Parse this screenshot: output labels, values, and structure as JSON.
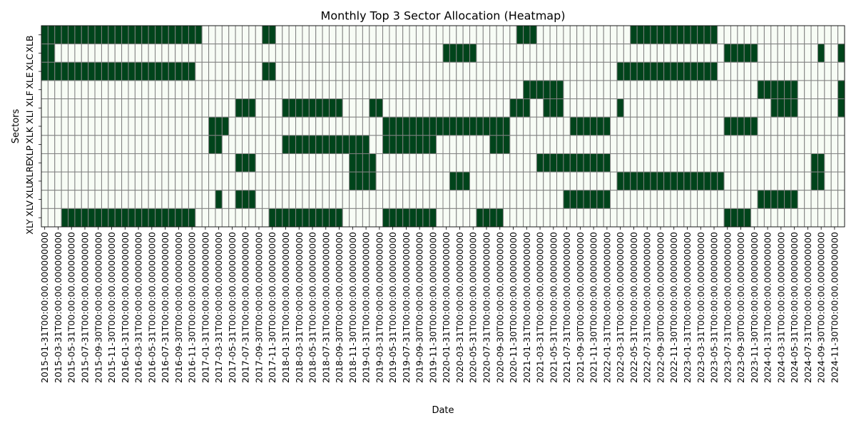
{
  "chart_data": {
    "type": "heatmap",
    "title": "Monthly Top 3 Sector Allocation (Heatmap)",
    "xlabel": "Date",
    "ylabel": "Sectors",
    "colors": {
      "on": "#00441b",
      "off": "#f7fcf5",
      "grid": "#808080"
    },
    "sectors": [
      "XLB",
      "XLC",
      "XLE",
      "XLF",
      "XLI",
      "XLK",
      "XLP",
      "XLRE",
      "XLU",
      "XLV",
      "XLY"
    ],
    "x_tick_labels": [
      "2015-01-31T00:00:00.000000000",
      "2015-03-31T00:00:00.000000000",
      "2015-05-31T00:00:00.000000000",
      "2015-07-31T00:00:00.000000000",
      "2015-09-30T00:00:00.000000000",
      "2015-11-30T00:00:00.000000000",
      "2016-01-31T00:00:00.000000000",
      "2016-03-31T00:00:00.000000000",
      "2016-05-31T00:00:00.000000000",
      "2016-07-31T00:00:00.000000000",
      "2016-09-30T00:00:00.000000000",
      "2016-11-30T00:00:00.000000000",
      "2017-01-31T00:00:00.000000000",
      "2017-03-31T00:00:00.000000000",
      "2017-05-31T00:00:00.000000000",
      "2017-07-31T00:00:00.000000000",
      "2017-09-30T00:00:00.000000000",
      "2017-11-30T00:00:00.000000000",
      "2018-01-31T00:00:00.000000000",
      "2018-03-31T00:00:00.000000000",
      "2018-05-31T00:00:00.000000000",
      "2018-07-31T00:00:00.000000000",
      "2018-09-30T00:00:00.000000000",
      "2018-11-30T00:00:00.000000000",
      "2019-01-31T00:00:00.000000000",
      "2019-03-31T00:00:00.000000000",
      "2019-05-31T00:00:00.000000000",
      "2019-07-31T00:00:00.000000000",
      "2019-09-30T00:00:00.000000000",
      "2019-11-30T00:00:00.000000000",
      "2020-01-31T00:00:00.000000000",
      "2020-03-31T00:00:00.000000000",
      "2020-05-31T00:00:00.000000000",
      "2020-07-31T00:00:00.000000000",
      "2020-09-30T00:00:00.000000000",
      "2020-11-30T00:00:00.000000000",
      "2021-01-31T00:00:00.000000000",
      "2021-03-31T00:00:00.000000000",
      "2021-05-31T00:00:00.000000000",
      "2021-07-31T00:00:00.000000000",
      "2021-09-30T00:00:00.000000000",
      "2021-11-30T00:00:00.000000000",
      "2022-01-31T00:00:00.000000000",
      "2022-03-31T00:00:00.000000000",
      "2022-05-31T00:00:00.000000000",
      "2022-07-31T00:00:00.000000000",
      "2022-09-30T00:00:00.000000000",
      "2022-11-30T00:00:00.000000000",
      "2023-01-31T00:00:00.000000000",
      "2023-03-31T00:00:00.000000000",
      "2023-05-31T00:00:00.000000000",
      "2023-07-31T00:00:00.000000000",
      "2023-09-30T00:00:00.000000000",
      "2023-11-30T00:00:00.000000000",
      "2024-01-31T00:00:00.000000000",
      "2024-03-31T00:00:00.000000000",
      "2024-05-31T00:00:00.000000000",
      "2024-07-31T00:00:00.000000000",
      "2024-09-30T00:00:00.000000000",
      "2024-11-30T00:00:00.000000000"
    ],
    "months": 120,
    "start_month": "2015-01",
    "selected_month_ranges": {
      "XLB": [
        [
          0,
          24
        ],
        [
          33,
          35
        ],
        [
          66,
          66
        ],
        [
          71,
          74
        ],
        [
          88,
          101
        ]
      ],
      "XLC": [
        [
          0,
          2
        ],
        [
          60,
          65
        ],
        [
          78,
          78
        ],
        [
          102,
          107
        ],
        [
          116,
          117
        ],
        [
          119,
          120
        ]
      ],
      "XLE": [
        [
          0,
          23
        ],
        [
          33,
          35
        ],
        [
          74,
          74
        ],
        [
          86,
          101
        ]
      ],
      "XLF": [
        [
          24,
          24
        ],
        [
          72,
          78
        ],
        [
          107,
          113
        ],
        [
          119,
          120
        ]
      ],
      "XLI": [
        [
          24,
          24
        ],
        [
          29,
          32
        ],
        [
          36,
          45
        ],
        [
          49,
          51
        ],
        [
          70,
          73
        ],
        [
          75,
          78
        ],
        [
          86,
          87
        ],
        [
          109,
          113
        ],
        [
          119,
          120
        ]
      ],
      "XLK": [
        [
          25,
          28
        ],
        [
          33,
          33
        ],
        [
          51,
          70
        ],
        [
          79,
          85
        ],
        [
          102,
          107
        ]
      ],
      "XLP": [
        [
          25,
          27
        ],
        [
          36,
          49
        ],
        [
          51,
          59
        ],
        [
          67,
          70
        ]
      ],
      "XLRE": [
        [
          29,
          32
        ],
        [
          46,
          50
        ],
        [
          74,
          85
        ],
        [
          108,
          108
        ],
        [
          115,
          117
        ]
      ],
      "XLU": [
        [
          25,
          25
        ],
        [
          28,
          28
        ],
        [
          46,
          50
        ],
        [
          61,
          64
        ],
        [
          70,
          70
        ],
        [
          86,
          102
        ],
        [
          115,
          117
        ]
      ],
      "XLV": [
        [
          26,
          27
        ],
        [
          29,
          32
        ],
        [
          60,
          60
        ],
        [
          78,
          85
        ],
        [
          107,
          113
        ]
      ],
      "XLY": [
        [
          3,
          23
        ],
        [
          28,
          28
        ],
        [
          34,
          45
        ],
        [
          51,
          59
        ],
        [
          65,
          69
        ],
        [
          102,
          106
        ]
      ]
    }
  }
}
